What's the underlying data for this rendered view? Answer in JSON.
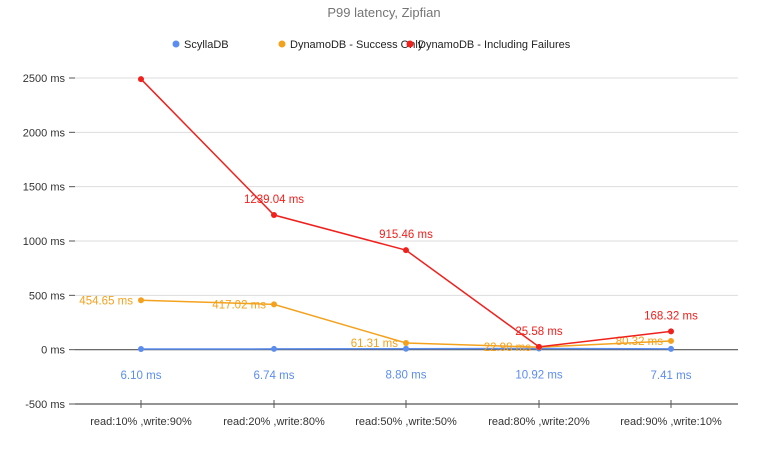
{
  "chart_data": {
    "type": "line",
    "title": "P99 latency, Zipfian",
    "categories": [
      "read:10% ,write:90%",
      "read:20% ,write:80%",
      "read:50% ,write:50%",
      "read:80% ,write:20%",
      "read:90% ,write:10%"
    ],
    "ylim": [
      -500,
      2500
    ],
    "yticks": [
      "2500 ms",
      "2000 ms",
      "1500 ms",
      "1000 ms",
      "500 ms",
      "0 ms",
      "-500 ms"
    ],
    "ytick_values": [
      2500,
      2000,
      1500,
      1000,
      500,
      0,
      -500
    ],
    "grid": true,
    "legend": "top",
    "series": [
      {
        "name": "ScyllaDB",
        "color": "#5b8def",
        "values": [
          6.1,
          6.74,
          8.8,
          10.92,
          7.41
        ],
        "labels": [
          "6.10 ms",
          "6.74 ms",
          "8.80 ms",
          "10.92 ms",
          "7.41 ms"
        ]
      },
      {
        "name": "DynamoDB - Success Only",
        "color": "#f4a21e",
        "values": [
          454.65,
          417.02,
          61.31,
          22.98,
          80.32
        ],
        "labels": [
          "454.65 ms",
          "417.02 ms",
          "61.31 ms",
          "22.98 ms",
          "80.32 ms"
        ]
      },
      {
        "name": "DynamoDB - Including Failures",
        "color": "#f0201c",
        "values": [
          2490,
          1239.04,
          915.46,
          25.58,
          168.32
        ],
        "labels": [
          "",
          "1239.04 ms",
          "915.46 ms",
          "25.58 ms",
          "168.32 ms"
        ]
      }
    ]
  }
}
